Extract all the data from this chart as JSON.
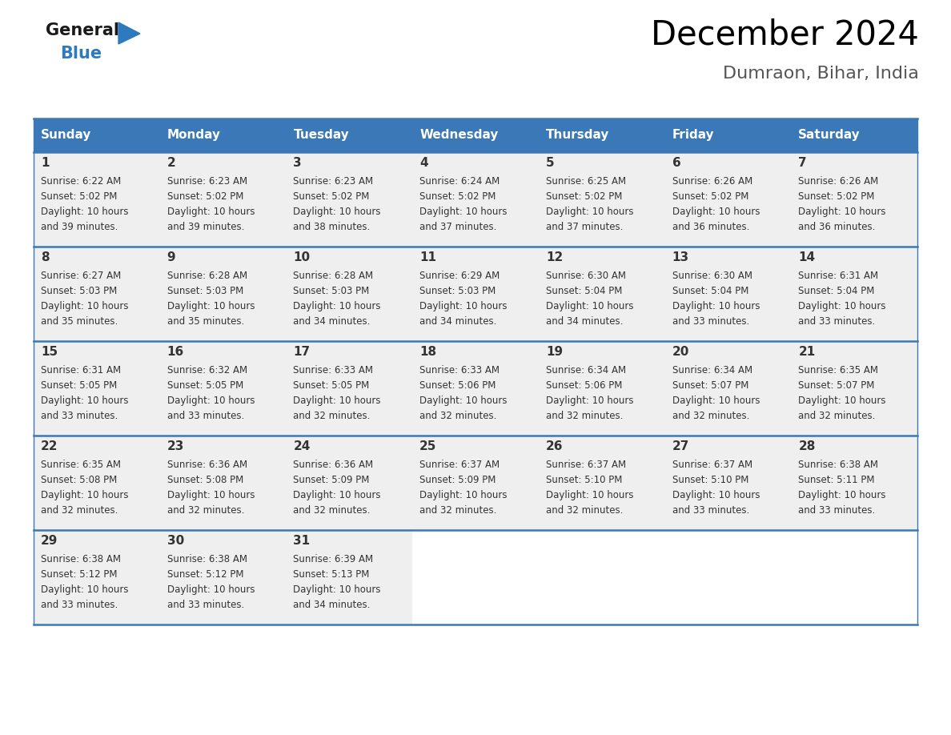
{
  "title": "December 2024",
  "subtitle": "Dumraon, Bihar, India",
  "header_bg_color": "#3b78b8",
  "header_text_color": "#ffffff",
  "cell_bg_color": "#efefef",
  "cell_bg_empty": "#ffffff",
  "grid_line_color": "#3b78b8",
  "text_color": "#333333",
  "days_of_week": [
    "Sunday",
    "Monday",
    "Tuesday",
    "Wednesday",
    "Thursday",
    "Friday",
    "Saturday"
  ],
  "logo_general_color": "#1a1a1a",
  "logo_blue_color": "#2e7abf",
  "calendar_data": [
    {
      "week": 1,
      "days": [
        {
          "day": 1,
          "sunrise": "6:22 AM",
          "sunset": "5:02 PM",
          "daylight_hours": 10,
          "daylight_minutes": 39
        },
        {
          "day": 2,
          "sunrise": "6:23 AM",
          "sunset": "5:02 PM",
          "daylight_hours": 10,
          "daylight_minutes": 39
        },
        {
          "day": 3,
          "sunrise": "6:23 AM",
          "sunset": "5:02 PM",
          "daylight_hours": 10,
          "daylight_minutes": 38
        },
        {
          "day": 4,
          "sunrise": "6:24 AM",
          "sunset": "5:02 PM",
          "daylight_hours": 10,
          "daylight_minutes": 37
        },
        {
          "day": 5,
          "sunrise": "6:25 AM",
          "sunset": "5:02 PM",
          "daylight_hours": 10,
          "daylight_minutes": 37
        },
        {
          "day": 6,
          "sunrise": "6:26 AM",
          "sunset": "5:02 PM",
          "daylight_hours": 10,
          "daylight_minutes": 36
        },
        {
          "day": 7,
          "sunrise": "6:26 AM",
          "sunset": "5:02 PM",
          "daylight_hours": 10,
          "daylight_minutes": 36
        }
      ]
    },
    {
      "week": 2,
      "days": [
        {
          "day": 8,
          "sunrise": "6:27 AM",
          "sunset": "5:03 PM",
          "daylight_hours": 10,
          "daylight_minutes": 35
        },
        {
          "day": 9,
          "sunrise": "6:28 AM",
          "sunset": "5:03 PM",
          "daylight_hours": 10,
          "daylight_minutes": 35
        },
        {
          "day": 10,
          "sunrise": "6:28 AM",
          "sunset": "5:03 PM",
          "daylight_hours": 10,
          "daylight_minutes": 34
        },
        {
          "day": 11,
          "sunrise": "6:29 AM",
          "sunset": "5:03 PM",
          "daylight_hours": 10,
          "daylight_minutes": 34
        },
        {
          "day": 12,
          "sunrise": "6:30 AM",
          "sunset": "5:04 PM",
          "daylight_hours": 10,
          "daylight_minutes": 34
        },
        {
          "day": 13,
          "sunrise": "6:30 AM",
          "sunset": "5:04 PM",
          "daylight_hours": 10,
          "daylight_minutes": 33
        },
        {
          "day": 14,
          "sunrise": "6:31 AM",
          "sunset": "5:04 PM",
          "daylight_hours": 10,
          "daylight_minutes": 33
        }
      ]
    },
    {
      "week": 3,
      "days": [
        {
          "day": 15,
          "sunrise": "6:31 AM",
          "sunset": "5:05 PM",
          "daylight_hours": 10,
          "daylight_minutes": 33
        },
        {
          "day": 16,
          "sunrise": "6:32 AM",
          "sunset": "5:05 PM",
          "daylight_hours": 10,
          "daylight_minutes": 33
        },
        {
          "day": 17,
          "sunrise": "6:33 AM",
          "sunset": "5:05 PM",
          "daylight_hours": 10,
          "daylight_minutes": 32
        },
        {
          "day": 18,
          "sunrise": "6:33 AM",
          "sunset": "5:06 PM",
          "daylight_hours": 10,
          "daylight_minutes": 32
        },
        {
          "day": 19,
          "sunrise": "6:34 AM",
          "sunset": "5:06 PM",
          "daylight_hours": 10,
          "daylight_minutes": 32
        },
        {
          "day": 20,
          "sunrise": "6:34 AM",
          "sunset": "5:07 PM",
          "daylight_hours": 10,
          "daylight_minutes": 32
        },
        {
          "day": 21,
          "sunrise": "6:35 AM",
          "sunset": "5:07 PM",
          "daylight_hours": 10,
          "daylight_minutes": 32
        }
      ]
    },
    {
      "week": 4,
      "days": [
        {
          "day": 22,
          "sunrise": "6:35 AM",
          "sunset": "5:08 PM",
          "daylight_hours": 10,
          "daylight_minutes": 32
        },
        {
          "day": 23,
          "sunrise": "6:36 AM",
          "sunset": "5:08 PM",
          "daylight_hours": 10,
          "daylight_minutes": 32
        },
        {
          "day": 24,
          "sunrise": "6:36 AM",
          "sunset": "5:09 PM",
          "daylight_hours": 10,
          "daylight_minutes": 32
        },
        {
          "day": 25,
          "sunrise": "6:37 AM",
          "sunset": "5:09 PM",
          "daylight_hours": 10,
          "daylight_minutes": 32
        },
        {
          "day": 26,
          "sunrise": "6:37 AM",
          "sunset": "5:10 PM",
          "daylight_hours": 10,
          "daylight_minutes": 32
        },
        {
          "day": 27,
          "sunrise": "6:37 AM",
          "sunset": "5:10 PM",
          "daylight_hours": 10,
          "daylight_minutes": 33
        },
        {
          "day": 28,
          "sunrise": "6:38 AM",
          "sunset": "5:11 PM",
          "daylight_hours": 10,
          "daylight_minutes": 33
        }
      ]
    },
    {
      "week": 5,
      "days": [
        {
          "day": 29,
          "sunrise": "6:38 AM",
          "sunset": "5:12 PM",
          "daylight_hours": 10,
          "daylight_minutes": 33
        },
        {
          "day": 30,
          "sunrise": "6:38 AM",
          "sunset": "5:12 PM",
          "daylight_hours": 10,
          "daylight_minutes": 33
        },
        {
          "day": 31,
          "sunrise": "6:39 AM",
          "sunset": "5:13 PM",
          "daylight_hours": 10,
          "daylight_minutes": 34
        },
        null,
        null,
        null,
        null
      ]
    }
  ],
  "figsize": [
    11.88,
    9.18
  ],
  "dpi": 100,
  "title_fontsize": 30,
  "subtitle_fontsize": 16,
  "header_fontsize": 11,
  "day_num_fontsize": 11,
  "cell_fontsize": 8.5
}
